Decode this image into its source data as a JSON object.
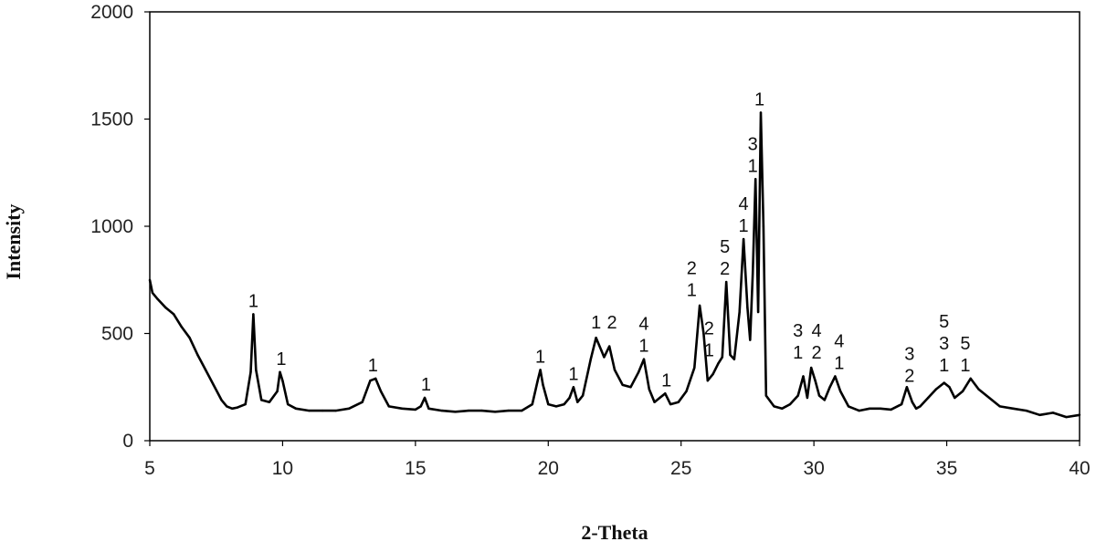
{
  "chart_data": {
    "type": "line",
    "title": "",
    "xlabel": "2-Theta",
    "ylabel": "Intensity",
    "xlim": [
      5,
      40
    ],
    "ylim": [
      0,
      2000
    ],
    "x_ticks": [
      5,
      10,
      15,
      20,
      25,
      30,
      35,
      40
    ],
    "y_ticks": [
      0,
      500,
      1000,
      1500,
      2000
    ],
    "grid": false,
    "legend": "none",
    "series": [
      {
        "color": "#000000",
        "x": [
          5.0,
          5.1,
          5.3,
          5.6,
          5.9,
          6.2,
          6.5,
          6.8,
          7.1,
          7.4,
          7.7,
          7.9,
          8.1,
          8.3,
          8.6,
          8.8,
          8.9,
          9.0,
          9.2,
          9.5,
          9.8,
          9.9,
          10.0,
          10.2,
          10.5,
          11.0,
          11.5,
          12.0,
          12.5,
          13.0,
          13.3,
          13.5,
          13.7,
          14.0,
          14.5,
          15.0,
          15.2,
          15.35,
          15.5,
          16.0,
          16.5,
          17.0,
          17.5,
          18.0,
          18.5,
          19.0,
          19.4,
          19.6,
          19.7,
          19.8,
          20.0,
          20.3,
          20.6,
          20.8,
          20.95,
          21.1,
          21.3,
          21.6,
          21.8,
          22.0,
          22.1,
          22.3,
          22.5,
          22.8,
          23.1,
          23.4,
          23.6,
          23.8,
          24.0,
          24.2,
          24.4,
          24.6,
          24.9,
          25.2,
          25.5,
          25.7,
          25.85,
          26.0,
          26.2,
          26.4,
          26.55,
          26.7,
          26.85,
          27.0,
          27.2,
          27.35,
          27.5,
          27.6,
          27.7,
          27.8,
          27.9,
          28.0,
          28.1,
          28.2,
          28.5,
          28.8,
          29.1,
          29.4,
          29.6,
          29.75,
          29.9,
          30.05,
          30.2,
          30.4,
          30.6,
          30.8,
          31.0,
          31.3,
          31.7,
          32.1,
          32.5,
          32.9,
          33.3,
          33.5,
          33.7,
          33.85,
          34.0,
          34.3,
          34.6,
          34.9,
          35.1,
          35.3,
          35.6,
          35.9,
          36.2,
          36.6,
          37.0,
          37.5,
          38.0,
          38.5,
          39.0,
          39.5,
          40.0
        ],
        "y": [
          750,
          690,
          660,
          620,
          590,
          530,
          480,
          400,
          330,
          260,
          190,
          160,
          150,
          155,
          170,
          320,
          590,
          330,
          190,
          180,
          230,
          320,
          280,
          170,
          150,
          140,
          140,
          140,
          150,
          180,
          280,
          290,
          230,
          160,
          150,
          145,
          160,
          200,
          150,
          140,
          135,
          140,
          140,
          135,
          140,
          140,
          170,
          280,
          330,
          260,
          170,
          160,
          170,
          200,
          250,
          180,
          210,
          380,
          480,
          420,
          390,
          440,
          330,
          260,
          250,
          320,
          380,
          240,
          180,
          200,
          220,
          170,
          180,
          230,
          340,
          630,
          500,
          280,
          310,
          360,
          390,
          740,
          400,
          380,
          600,
          940,
          620,
          470,
          780,
          1220,
          600,
          1530,
          1000,
          210,
          160,
          150,
          170,
          210,
          300,
          200,
          340,
          280,
          210,
          190,
          250,
          300,
          230,
          160,
          140,
          150,
          150,
          145,
          170,
          250,
          180,
          150,
          160,
          200,
          240,
          270,
          250,
          200,
          230,
          290,
          240,
          200,
          160,
          150,
          140,
          120,
          130,
          110,
          120
        ]
      }
    ],
    "annotations": [
      {
        "x": 8.9,
        "y": 590,
        "lines": [
          "1"
        ]
      },
      {
        "x": 9.95,
        "y": 320,
        "lines": [
          "1"
        ]
      },
      {
        "x": 13.4,
        "y": 290,
        "lines": [
          "1"
        ]
      },
      {
        "x": 15.4,
        "y": 200,
        "lines": [
          "1"
        ]
      },
      {
        "x": 19.7,
        "y": 330,
        "lines": [
          "1"
        ]
      },
      {
        "x": 20.95,
        "y": 250,
        "lines": [
          "1"
        ]
      },
      {
        "x": 21.8,
        "y": 490,
        "lines": [
          "1"
        ]
      },
      {
        "x": 22.4,
        "y": 490,
        "lines": [
          "2"
        ]
      },
      {
        "x": 23.6,
        "y": 380,
        "lines": [
          "4",
          "1"
        ]
      },
      {
        "x": 24.45,
        "y": 220,
        "lines": [
          "1"
        ]
      },
      {
        "x": 25.4,
        "y": 640,
        "lines": [
          "2",
          "1"
        ]
      },
      {
        "x": 26.05,
        "y": 360,
        "lines": [
          "2",
          "1"
        ]
      },
      {
        "x": 26.65,
        "y": 740,
        "lines": [
          "5",
          "2"
        ]
      },
      {
        "x": 27.35,
        "y": 940,
        "lines": [
          "4",
          "1"
        ]
      },
      {
        "x": 27.7,
        "y": 1220,
        "lines": [
          "3",
          "1"
        ]
      },
      {
        "x": 27.95,
        "y": 1530,
        "lines": [
          "1"
        ]
      },
      {
        "x": 29.4,
        "y": 350,
        "lines": [
          "3",
          "1"
        ]
      },
      {
        "x": 30.1,
        "y": 350,
        "lines": [
          "4",
          "2"
        ]
      },
      {
        "x": 30.95,
        "y": 300,
        "lines": [
          "4",
          "1"
        ]
      },
      {
        "x": 33.6,
        "y": 240,
        "lines": [
          "3",
          "2"
        ]
      },
      {
        "x": 34.9,
        "y": 290,
        "lines": [
          "5",
          "3",
          "1"
        ]
      },
      {
        "x": 35.7,
        "y": 290,
        "lines": [
          "5",
          "1"
        ]
      }
    ]
  }
}
